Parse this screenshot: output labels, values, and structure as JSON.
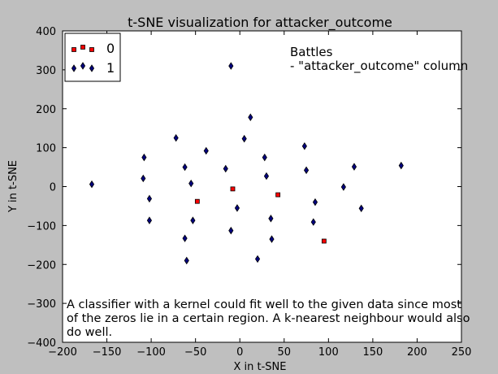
{
  "chart_data": {
    "type": "scatter",
    "title": "t-SNE visualization for attacker_outcome",
    "xlabel": "X in t-SNE",
    "ylabel": "Y in t-SNE",
    "xlim": [
      -200,
      250
    ],
    "ylim": [
      -400,
      400
    ],
    "xticks": [
      -200,
      -150,
      -100,
      -50,
      0,
      50,
      100,
      150,
      200,
      250
    ],
    "yticks": [
      -400,
      -300,
      -200,
      -100,
      0,
      100,
      200,
      300,
      400
    ],
    "grid": false,
    "legend_position": "top-left",
    "series": [
      {
        "name": "0",
        "marker": "square",
        "color": "#ff0000",
        "points": [
          [
            -8,
            -6
          ],
          [
            -48,
            -38
          ],
          [
            43,
            -21
          ],
          [
            95,
            -140
          ]
        ]
      },
      {
        "name": "1",
        "marker": "diamond",
        "color": "#00007f",
        "points": [
          [
            -10,
            310
          ],
          [
            -167,
            6
          ],
          [
            -108,
            75
          ],
          [
            -109,
            21
          ],
          [
            -102,
            -31
          ],
          [
            -102,
            -87
          ],
          [
            -72,
            125
          ],
          [
            -62,
            50
          ],
          [
            -55,
            8
          ],
          [
            -53,
            -87
          ],
          [
            -62,
            -133
          ],
          [
            -60,
            -190
          ],
          [
            -38,
            92
          ],
          [
            -16,
            46
          ],
          [
            -10,
            -113
          ],
          [
            -3,
            -55
          ],
          [
            5,
            123
          ],
          [
            12,
            178
          ],
          [
            20,
            -186
          ],
          [
            28,
            75
          ],
          [
            30,
            27
          ],
          [
            35,
            -82
          ],
          [
            36,
            -135
          ],
          [
            73,
            104
          ],
          [
            75,
            42
          ],
          [
            83,
            -91
          ],
          [
            85,
            -40
          ],
          [
            117,
            -1
          ],
          [
            129,
            51
          ],
          [
            137,
            -56
          ],
          [
            182,
            54
          ]
        ]
      }
    ],
    "annotations": {
      "battles_line1": "Battles",
      "battles_line2": "- \"attacker_outcome\" column",
      "note_line1": "A classifier with a kernel could fit well to the given data since most",
      "note_line2": "of the zeros lie in a certain region. A k-nearest neighbour would also",
      "note_line3": "do well."
    }
  }
}
